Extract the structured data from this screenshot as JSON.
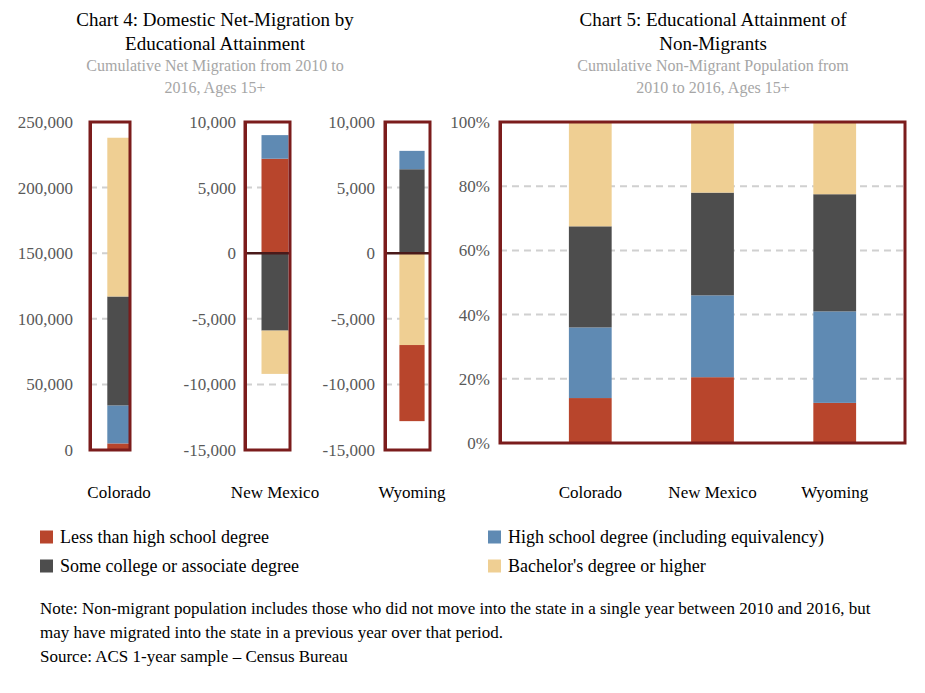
{
  "chart_data": [
    {
      "type": "bar",
      "title": "Chart 4: Domestic Net-Migration by Educational Attainment",
      "subtitle": "Cumulative Net Migration from 2010 to 2016, Ages 15+",
      "categories": [
        "Colorado"
      ],
      "stacked": true,
      "grid": true,
      "ylim": [
        0,
        250000
      ],
      "yticks": [
        0,
        {
          "value": 50000,
          "label": "50,000"
        },
        {
          "value": 100000,
          "label": "100,000"
        },
        {
          "value": 150000,
          "label": "150,000"
        },
        {
          "value": 200000,
          "label": "200,000"
        },
        {
          "value": 250000,
          "label": "250,000"
        }
      ],
      "series": [
        {
          "name": "Less than high school degree",
          "color": "#b8452c",
          "values": [
            5000
          ]
        },
        {
          "name": "High school degree (including equivalency)",
          "color": "#5f8ab3",
          "values": [
            29000
          ]
        },
        {
          "name": "Some college or associate degree",
          "color": "#4d4d4d",
          "values": [
            83000
          ]
        },
        {
          "name": "Bachelor's degree or higher",
          "color": "#efcf93",
          "values": [
            121000
          ]
        }
      ]
    },
    {
      "type": "bar",
      "categories": [
        "New Mexico"
      ],
      "stacked": true,
      "grid": true,
      "ylim": [
        -15000,
        10000
      ],
      "yticks": [
        {
          "value": -15000,
          "label": "-15,000"
        },
        {
          "value": -10000,
          "label": "-10,000"
        },
        {
          "value": -5000,
          "label": "-5,000"
        },
        0,
        {
          "value": 5000,
          "label": "5,000"
        },
        {
          "value": 10000,
          "label": "10,000"
        }
      ],
      "series": [
        {
          "name": "Less than high school degree",
          "color": "#b8452c",
          "values": [
            7200
          ]
        },
        {
          "name": "High school degree (including equivalency)",
          "color": "#5f8ab3",
          "values": [
            1800
          ]
        },
        {
          "name": "Some college or associate degree",
          "color": "#4d4d4d",
          "values": [
            -5900
          ]
        },
        {
          "name": "Bachelor's degree or higher",
          "color": "#efcf93",
          "values": [
            -3300
          ]
        }
      ]
    },
    {
      "type": "bar",
      "categories": [
        "Wyoming"
      ],
      "stacked": true,
      "grid": true,
      "ylim": [
        -15000,
        10000
      ],
      "yticks": [
        {
          "value": -15000,
          "label": "-15,000"
        },
        {
          "value": -10000,
          "label": "-10,000"
        },
        {
          "value": -5000,
          "label": "-5,000"
        },
        0,
        {
          "value": 5000,
          "label": "5,000"
        },
        {
          "value": 10000,
          "label": "10,000"
        }
      ],
      "series": [
        {
          "name": "Some college or associate degree",
          "color": "#4d4d4d",
          "values": [
            6400
          ]
        },
        {
          "name": "Bachelor's degree or higher",
          "color": "#efcf93",
          "values": [
            -7000
          ]
        },
        {
          "name": "High school degree (including equivalency)",
          "color": "#5f8ab3",
          "values": [
            1400
          ]
        },
        {
          "name": "Less than high school degree",
          "color": "#b8452c",
          "values": [
            -5800
          ]
        }
      ]
    },
    {
      "type": "bar",
      "title": "Chart 5: Educational Attainment of Non-Migrants",
      "subtitle": "Cumulative Non-Migrant Population from 2010 to 2016, Ages 15+",
      "categories": [
        "Colorado",
        "New Mexico",
        "Wyoming"
      ],
      "stacked": true,
      "grid": true,
      "legend": "bottom",
      "ylim": [
        0,
        100
      ],
      "yticks": [
        {
          "value": 0,
          "label": "0%"
        },
        {
          "value": 20,
          "label": "20%"
        },
        {
          "value": 40,
          "label": "40%"
        },
        {
          "value": 60,
          "label": "60%"
        },
        {
          "value": 80,
          "label": "80%"
        },
        {
          "value": 100,
          "label": "100%"
        }
      ],
      "series": [
        {
          "name": "Less than high school degree",
          "color": "#b8452c",
          "values": [
            14,
            20.5,
            12.5
          ]
        },
        {
          "name": "High school degree (including equivalency)",
          "color": "#5f8ab3",
          "values": [
            22,
            25.5,
            28.5
          ]
        },
        {
          "name": "Some college or associate degree",
          "color": "#4d4d4d",
          "values": [
            31.5,
            32,
            36.5
          ]
        },
        {
          "name": "Bachelor's degree or higher",
          "color": "#efcf93",
          "values": [
            32.5,
            22,
            22.5
          ]
        }
      ]
    }
  ],
  "footer": {
    "note": "Note: Non-migrant population includes those who did not move into the state in a single year between 2010 and 2016, but may have migrated into the state in a previous year over that period.",
    "source": "Source: ACS 1-year sample – Census Bureau"
  }
}
